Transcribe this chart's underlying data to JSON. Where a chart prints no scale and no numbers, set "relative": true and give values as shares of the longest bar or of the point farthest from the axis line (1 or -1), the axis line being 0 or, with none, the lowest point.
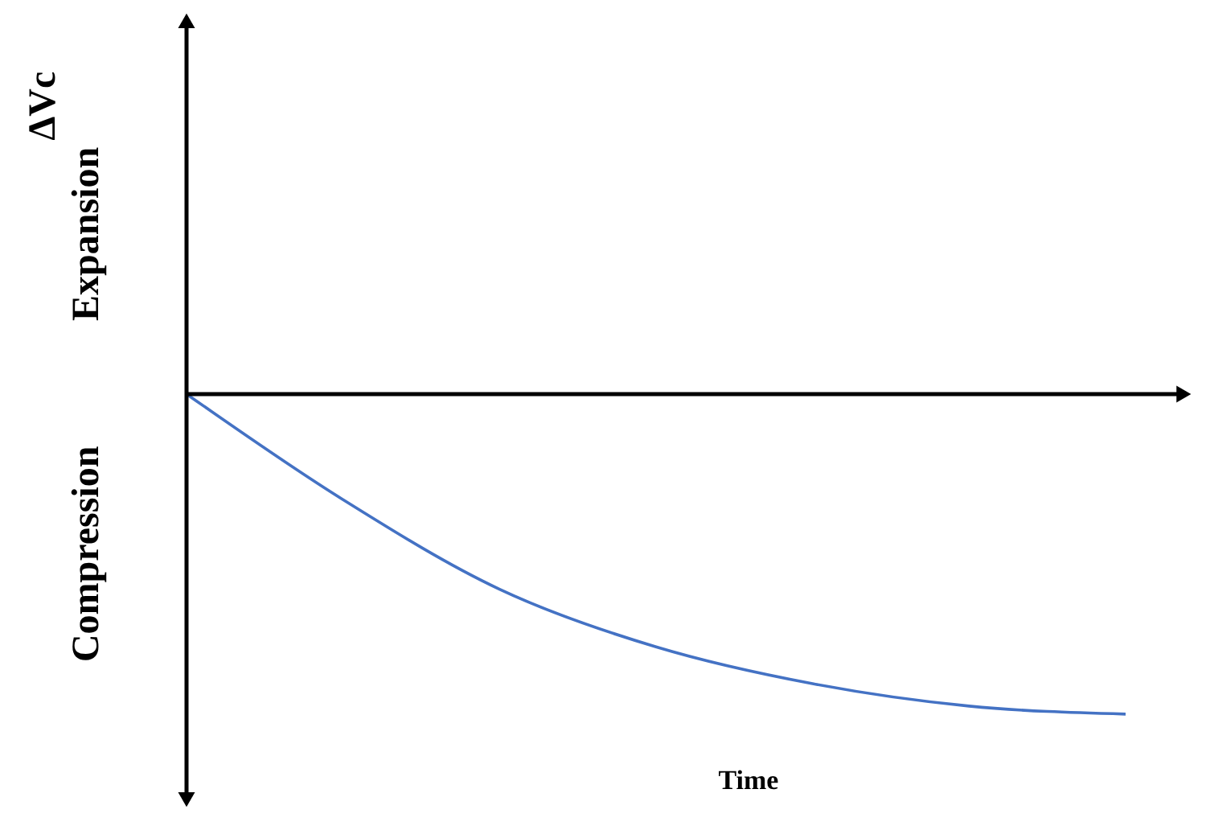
{
  "chart_data": {
    "type": "line",
    "relative": true,
    "xlabel": "Time",
    "annotations": [
      "ΔVc",
      "Expansion",
      "Compression"
    ],
    "categories": [
      null,
      null,
      null,
      null,
      null,
      null,
      null
    ],
    "series": [
      {
        "color": "#4472c4",
        "values": [
          0,
          -0.33,
          -0.61,
          -0.79,
          -0.905,
          -0.975,
          -1
        ]
      }
    ]
  }
}
